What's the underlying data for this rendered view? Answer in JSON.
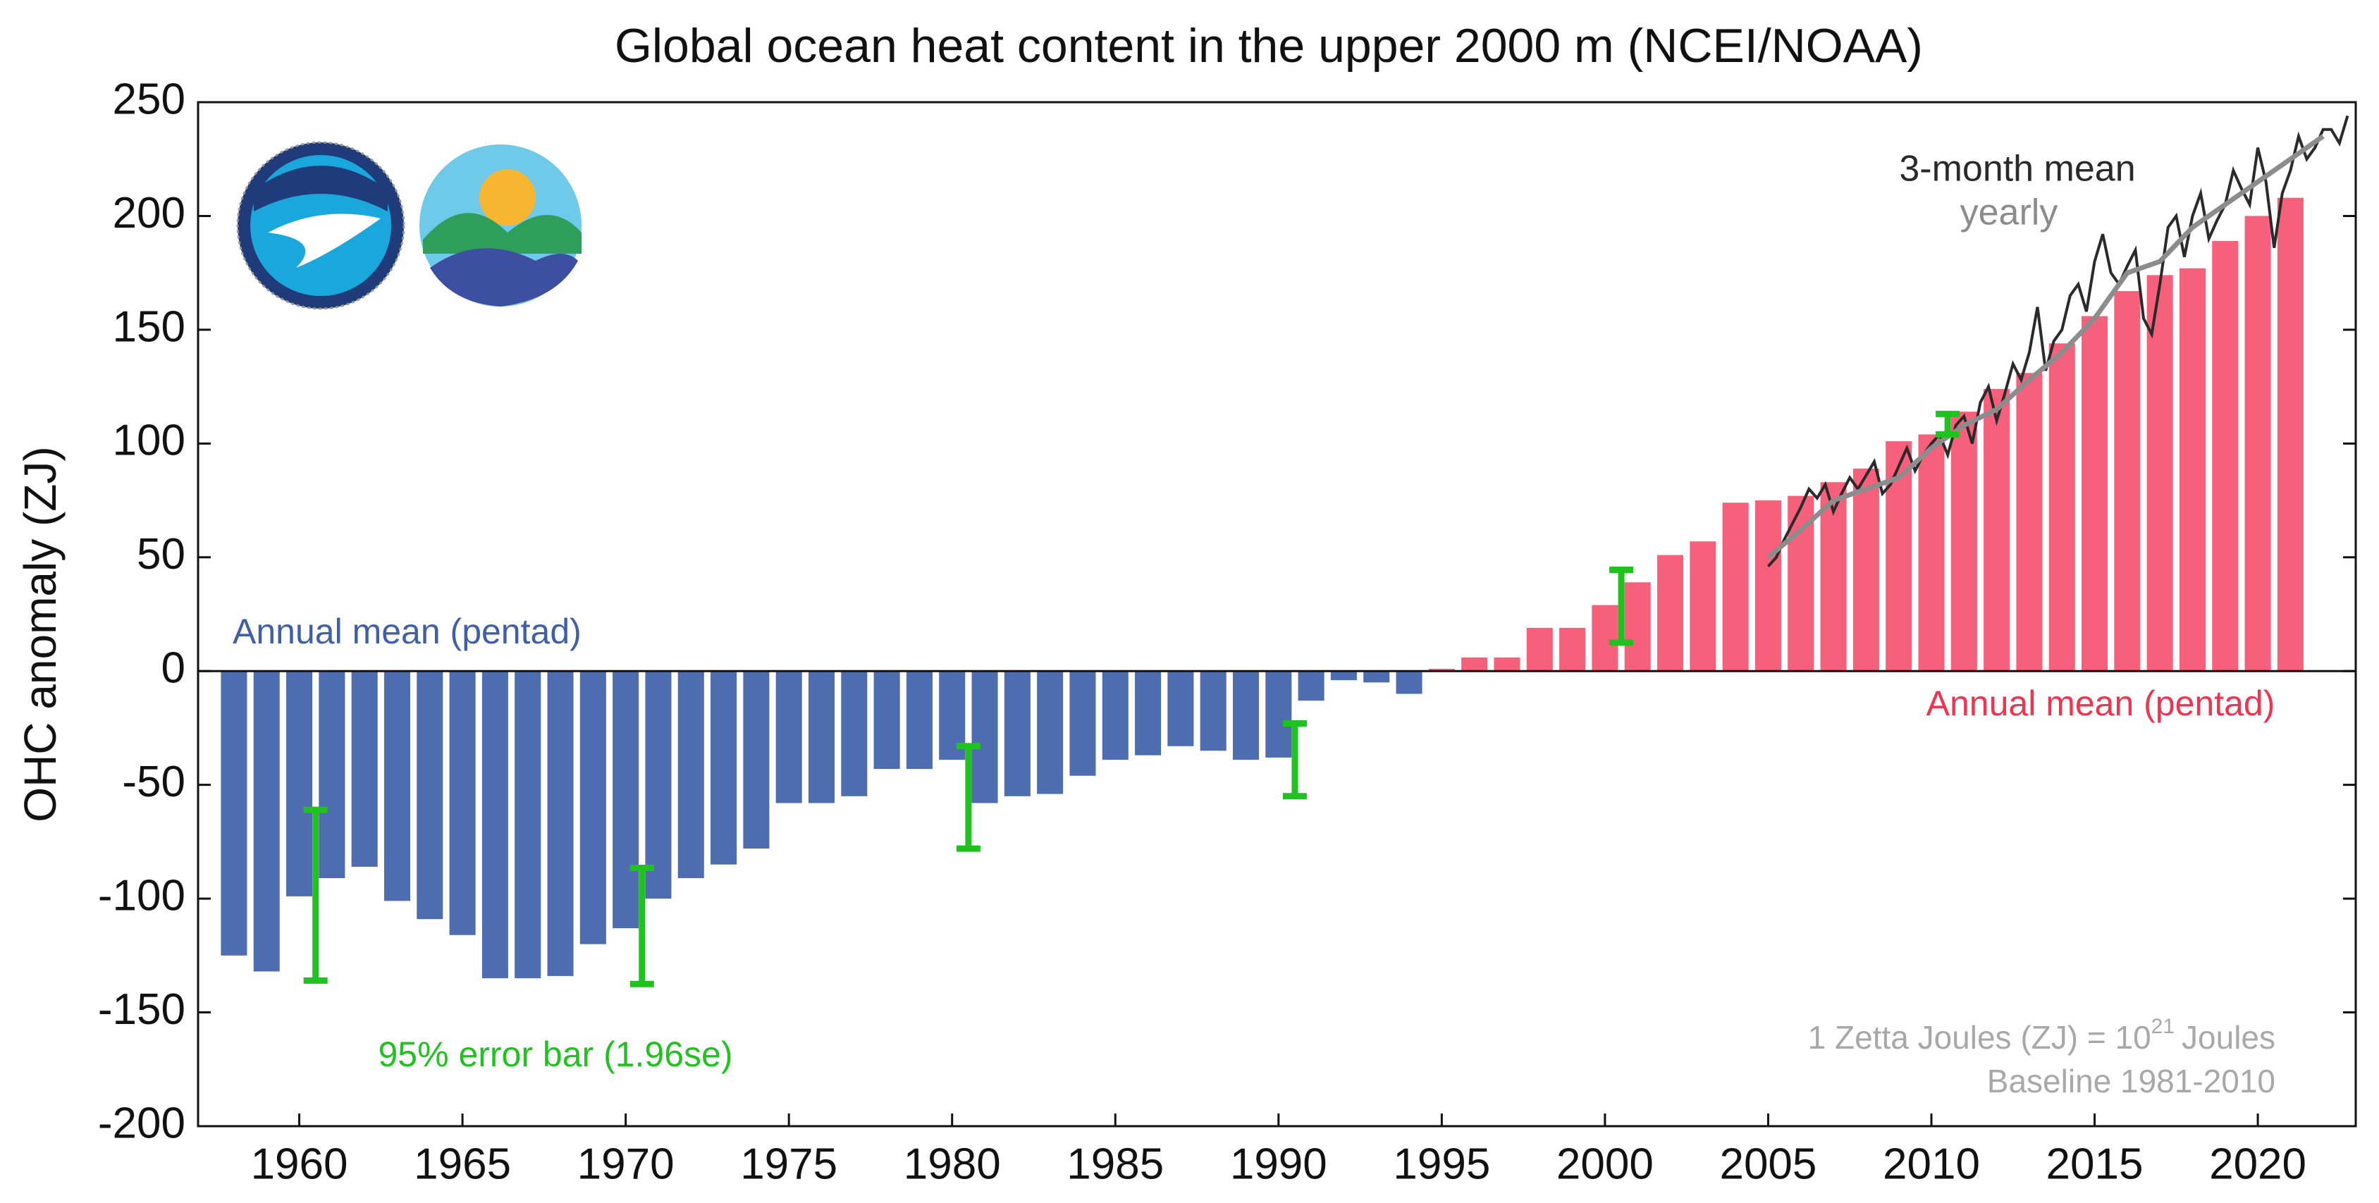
{
  "chart_data": {
    "type": "bar",
    "title": "Global ocean heat content in the upper 2000 m (NCEI/NOAA)",
    "y_label": "OHC anomaly (ZJ)",
    "xlim": [
      1956.9,
      2023.0
    ],
    "xticks": [
      1960,
      1965,
      1970,
      1975,
      1980,
      1985,
      1990,
      1995,
      2000,
      2005,
      2010,
      2015,
      2020
    ],
    "ylim": [
      -200,
      250
    ],
    "yticks": [
      -200,
      -150,
      -100,
      -50,
      0,
      50,
      100,
      150,
      200,
      250
    ],
    "x": [
      1958,
      1959,
      1960,
      1961,
      1962,
      1963,
      1964,
      1965,
      1966,
      1967,
      1968,
      1969,
      1970,
      1971,
      1972,
      1973,
      1974,
      1975,
      1976,
      1977,
      1978,
      1979,
      1980,
      1981,
      1982,
      1983,
      1984,
      1985,
      1986,
      1987,
      1988,
      1989,
      1990,
      1991,
      1992,
      1993,
      1994,
      1995,
      1996,
      1997,
      1998,
      1999,
      2000,
      2001,
      2002,
      2003,
      2004,
      2005,
      2006,
      2007,
      2008,
      2009,
      2010,
      2011,
      2012,
      2013,
      2014,
      2015,
      2016,
      2017,
      2018,
      2019,
      2020,
      2021
    ],
    "values": [
      -125,
      -132,
      -99,
      -91,
      -86,
      -101,
      -109,
      -116,
      -135,
      -135,
      -134,
      -120,
      -113,
      -100,
      -91,
      -85,
      -78,
      -58,
      -58,
      -55,
      -43,
      -43,
      -39,
      -58,
      -55,
      -54,
      -46,
      -39,
      -37,
      -33,
      -35,
      -39,
      -38,
      -13,
      -4,
      -5,
      -10,
      1,
      6,
      6,
      19,
      19,
      29,
      39,
      51,
      57,
      74,
      75,
      77,
      83,
      89,
      101,
      104,
      114,
      124,
      131,
      144,
      156,
      167,
      174,
      177,
      189,
      200,
      208
    ],
    "negative_color": "#4e6cb0",
    "positive_color": "#f6607b",
    "error_bars": {
      "color": "#1fc21f",
      "x": [
        1960.5,
        1970.5,
        1980.5,
        1990.5,
        2000.5,
        2010.5
      ],
      "values": [
        -98.5,
        -112,
        -55.5,
        -39,
        28.5,
        108.5
      ],
      "errors": [
        37.5,
        25.5,
        22.5,
        16,
        16,
        4.5
      ]
    },
    "lines": [
      {
        "name": "3-month mean",
        "color": "#2a2a2a",
        "x": [
          2005,
          2005.25,
          2005.5,
          2005.75,
          2006,
          2006.25,
          2006.5,
          2006.75,
          2007,
          2007.25,
          2007.5,
          2007.75,
          2008,
          2008.25,
          2008.5,
          2008.75,
          2009,
          2009.25,
          2009.5,
          2009.75,
          2010,
          2010.25,
          2010.5,
          2010.75,
          2011,
          2011.25,
          2011.5,
          2011.75,
          2012,
          2012.25,
          2012.5,
          2012.75,
          2013,
          2013.25,
          2013.5,
          2013.75,
          2014,
          2014.25,
          2014.5,
          2014.75,
          2015,
          2015.25,
          2015.5,
          2015.75,
          2016,
          2016.25,
          2016.5,
          2016.75,
          2017,
          2017.25,
          2017.5,
          2017.75,
          2018,
          2018.25,
          2018.5,
          2018.75,
          2019,
          2019.25,
          2019.5,
          2019.75,
          2020,
          2020.25,
          2020.5,
          2020.75,
          2021,
          2021.25,
          2021.5,
          2021.75,
          2022,
          2022.25,
          2022.5,
          2022.75
        ],
        "values": [
          46,
          50,
          58,
          65,
          72,
          80,
          76,
          82,
          70,
          78,
          85,
          80,
          86,
          92,
          78,
          82,
          90,
          98,
          88,
          95,
          100,
          104,
          95,
          108,
          112,
          100,
          118,
          125,
          110,
          122,
          135,
          128,
          140,
          160,
          132,
          145,
          150,
          165,
          170,
          158,
          180,
          192,
          175,
          170,
          178,
          185,
          155,
          148,
          170,
          195,
          200,
          182,
          200,
          210,
          190,
          198,
          205,
          220,
          212,
          205,
          230,
          215,
          186,
          210,
          220,
          235,
          225,
          230,
          238,
          238,
          232,
          244
        ]
      },
      {
        "name": "yearly",
        "color": "#8c8c8c",
        "x": [
          2005,
          2006,
          2007,
          2008,
          2009,
          2010,
          2011,
          2012,
          2013,
          2014,
          2015,
          2016,
          2017,
          2018,
          2019,
          2020,
          2021,
          2022
        ],
        "values": [
          50,
          62,
          75,
          80,
          85,
          98,
          108,
          115,
          128,
          140,
          155,
          175,
          180,
          195,
          205,
          215,
          225,
          235
        ]
      }
    ],
    "annotations": [
      {
        "text": "Annual mean (pentad)",
        "color": "#3f5fa8"
      },
      {
        "text": "Annual mean (pentad)",
        "color": "#f0334f"
      },
      {
        "text": "95% error bar (1.96se)",
        "color": "#1fc21f"
      },
      {
        "text": "Baseline 1981-2010",
        "color": "#a8a8a8"
      }
    ],
    "unit_note": [
      "1 Zetta Joules (ZJ) = 10",
      "21",
      "Joules"
    ]
  }
}
